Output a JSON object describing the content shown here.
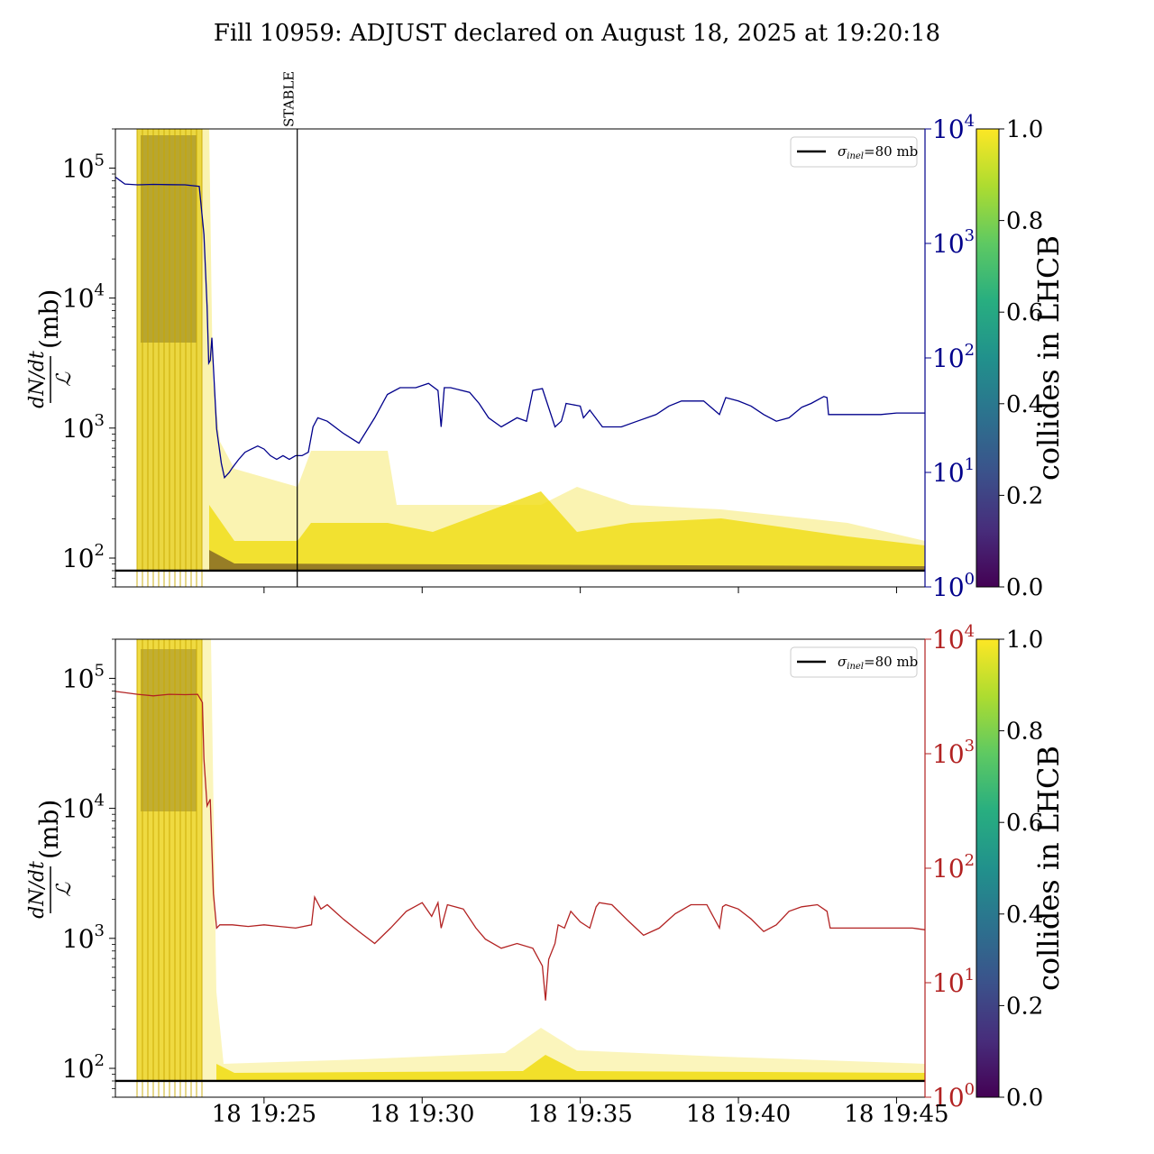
{
  "title": "Fill 10959: ADJUST declared on August 18, 2025 at 19:20:18",
  "chart_data": [
    {
      "type": "line",
      "panel": "top",
      "ylabel_num": "dN/dt",
      "ylabel_den": "ℒ",
      "ylabel_unit": "(mb)",
      "yscale": "log",
      "ylim": [
        60,
        200000
      ],
      "left_ticks": [
        {
          "value": 100,
          "base": "10",
          "exp": "2"
        },
        {
          "value": 1000,
          "base": "10",
          "exp": "3"
        },
        {
          "value": 10000,
          "base": "10",
          "exp": "4"
        },
        {
          "value": 100000,
          "base": "10",
          "exp": "5"
        }
      ],
      "right_axis": {
        "color": "#00008b",
        "scale": "log",
        "ylim": [
          1,
          10000
        ],
        "ticks": [
          {
            "value": 1,
            "base": "10",
            "exp": "0"
          },
          {
            "value": 10,
            "base": "10",
            "exp": "1"
          },
          {
            "value": 100,
            "base": "10",
            "exp": "2"
          },
          {
            "value": 1000,
            "base": "10",
            "exp": "3"
          },
          {
            "value": 10000,
            "base": "10",
            "exp": "4"
          }
        ]
      },
      "xlim_minutes": [
        20.3,
        45.9
      ],
      "x_unit": "minutes after 19:00 on day 18",
      "reference_line": {
        "value": 80,
        "label_sym": "σ",
        "label_sub": "inel",
        "label_rest": "=80 mb",
        "color": "#000000"
      },
      "vertical_marker": {
        "minute": 26.05,
        "label": "STABLE"
      },
      "colorbar": {
        "label": "collides in LHCB",
        "ticks": [
          "0.0",
          "0.2",
          "0.4",
          "0.6",
          "0.8",
          "1.0"
        ],
        "range": [
          0,
          1
        ]
      },
      "right_series": {
        "color": "#00008b",
        "x": [
          20.3,
          20.6,
          21.0,
          21.5,
          22.0,
          22.5,
          22.95,
          23.1,
          23.2,
          23.25,
          23.3,
          23.35,
          23.5,
          23.65,
          23.75,
          23.9,
          24.0,
          24.2,
          24.4,
          24.6,
          24.8,
          25.0,
          25.2,
          25.4,
          25.6,
          25.8,
          26.0,
          26.2,
          26.4,
          26.55,
          26.7,
          27.0,
          27.5,
          28.0,
          28.5,
          28.9,
          29.3,
          29.8,
          30.2,
          30.5,
          30.6,
          30.7,
          30.9,
          31.5,
          31.8,
          32.1,
          32.5,
          33.0,
          33.3,
          33.5,
          33.8,
          34.2,
          34.4,
          34.5,
          34.55,
          35.0,
          35.1,
          35.3,
          35.7,
          36.3,
          36.8,
          37.4,
          37.8,
          38.2,
          38.9,
          39.4,
          39.5,
          39.6,
          40.0,
          40.4,
          40.8,
          41.2,
          41.6,
          42.0,
          42.3,
          42.7,
          42.8,
          42.85,
          43.5,
          44.0,
          44.5,
          45.0,
          45.5,
          45.9
        ],
        "y": [
          3800,
          3300,
          3250,
          3280,
          3260,
          3250,
          3150,
          1200,
          280,
          90,
          95,
          150,
          24,
          12,
          9,
          10,
          11,
          13,
          15,
          16,
          17,
          16,
          14,
          13,
          14,
          13,
          14,
          14,
          15,
          25,
          30,
          28,
          22,
          18,
          30,
          48,
          55,
          55,
          60,
          52,
          25,
          55,
          55,
          50,
          40,
          30,
          25,
          30,
          28,
          52,
          54,
          25,
          28,
          35,
          40,
          38,
          30,
          35,
          25,
          25,
          28,
          32,
          38,
          42,
          42,
          32,
          38,
          45,
          42,
          38,
          32,
          28,
          30,
          37,
          40,
          46,
          45,
          32,
          32,
          32,
          32,
          33,
          33,
          33
        ]
      }
    },
    {
      "type": "line",
      "panel": "bottom",
      "ylabel_num": "dN/dt",
      "ylabel_den": "ℒ",
      "ylabel_unit": "(mb)",
      "yscale": "log",
      "ylim": [
        60,
        200000
      ],
      "left_ticks": [
        {
          "value": 100,
          "base": "10",
          "exp": "2"
        },
        {
          "value": 1000,
          "base": "10",
          "exp": "3"
        },
        {
          "value": 10000,
          "base": "10",
          "exp": "4"
        },
        {
          "value": 100000,
          "base": "10",
          "exp": "5"
        }
      ],
      "right_axis": {
        "color": "#b22222",
        "scale": "log",
        "ylim": [
          1,
          10000
        ],
        "ticks": [
          {
            "value": 1,
            "base": "10",
            "exp": "0"
          },
          {
            "value": 10,
            "base": "10",
            "exp": "1"
          },
          {
            "value": 100,
            "base": "10",
            "exp": "2"
          },
          {
            "value": 1000,
            "base": "10",
            "exp": "3"
          },
          {
            "value": 10000,
            "base": "10",
            "exp": "4"
          }
        ]
      },
      "xlim_minutes": [
        20.3,
        45.9
      ],
      "x_unit": "minutes after 19:00 on day 18",
      "x_ticks": [
        {
          "minute": 25,
          "label": "18 19:25"
        },
        {
          "minute": 30,
          "label": "18 19:30"
        },
        {
          "minute": 35,
          "label": "18 19:35"
        },
        {
          "minute": 40,
          "label": "18 19:40"
        },
        {
          "minute": 45,
          "label": "18 19:45"
        }
      ],
      "reference_line": {
        "value": 80,
        "label_sym": "σ",
        "label_sub": "inel",
        "label_rest": "=80 mb",
        "color": "#000000"
      },
      "colorbar": {
        "label": "collides in LHCB",
        "ticks": [
          "0.0",
          "0.2",
          "0.4",
          "0.6",
          "0.8",
          "1.0"
        ],
        "range": [
          0,
          1
        ]
      },
      "right_series": {
        "color": "#b22222",
        "x": [
          20.3,
          21.0,
          21.5,
          22.0,
          22.5,
          22.9,
          23.05,
          23.1,
          23.2,
          23.3,
          23.4,
          23.5,
          23.6,
          24.0,
          24.5,
          25.0,
          25.5,
          26.0,
          26.5,
          26.6,
          26.8,
          27.0,
          27.5,
          28.0,
          28.5,
          29.0,
          29.5,
          30.0,
          30.3,
          30.5,
          30.6,
          30.8,
          31.3,
          31.7,
          32.0,
          32.5,
          33.0,
          33.5,
          33.8,
          33.9,
          34.0,
          34.2,
          34.3,
          34.5,
          34.7,
          35.0,
          35.3,
          35.5,
          35.6,
          36.0,
          36.5,
          37.0,
          37.5,
          38.0,
          38.5,
          39.0,
          39.4,
          39.5,
          39.6,
          40.0,
          40.4,
          40.8,
          41.2,
          41.6,
          42.0,
          42.5,
          42.8,
          42.9,
          43.5,
          44.0,
          44.5,
          45.0,
          45.5,
          45.9
        ],
        "y": [
          3500,
          3300,
          3200,
          3300,
          3280,
          3300,
          2800,
          900,
          350,
          400,
          60,
          30,
          32,
          32,
          31,
          32,
          31,
          30,
          32,
          56,
          44,
          48,
          36,
          28,
          22,
          30,
          42,
          50,
          38,
          50,
          30,
          48,
          44,
          30,
          24,
          20,
          22,
          20,
          14,
          7,
          16,
          22,
          32,
          30,
          42,
          34,
          30,
          46,
          50,
          48,
          35,
          26,
          30,
          40,
          48,
          48,
          30,
          46,
          48,
          44,
          36,
          28,
          32,
          42,
          46,
          48,
          42,
          30,
          30,
          30,
          30,
          30,
          30,
          29
        ]
      }
    }
  ]
}
